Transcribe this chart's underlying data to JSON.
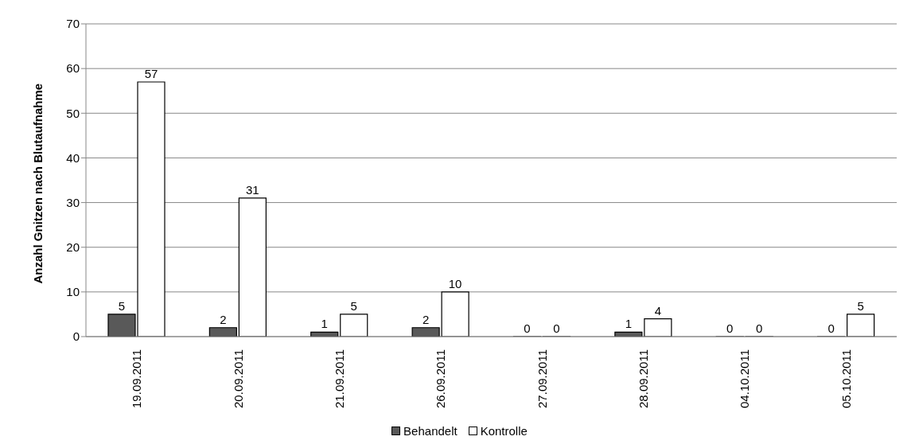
{
  "chart_data": {
    "type": "bar",
    "ylabel": "Anzahl Gnitzen nach Blutaufnahme",
    "categories": [
      "19.09.2011",
      "20.09.2011",
      "21.09.2011",
      "26.09.2011",
      "27.09.2011",
      "28.09.2011",
      "04.10.2011",
      "05.10.2011"
    ],
    "series": [
      {
        "name": "Behandelt",
        "color": "#595959",
        "values": [
          5,
          2,
          1,
          2,
          0,
          1,
          0,
          0
        ]
      },
      {
        "name": "Kontrolle",
        "color": "#ffffff",
        "values": [
          57,
          31,
          5,
          10,
          0,
          4,
          0,
          5
        ]
      }
    ],
    "ylim": [
      0,
      70
    ],
    "yticks": [
      0,
      10,
      20,
      30,
      40,
      50,
      60,
      70
    ],
    "grid": "y",
    "legend": "bottom",
    "data_labels": true
  }
}
